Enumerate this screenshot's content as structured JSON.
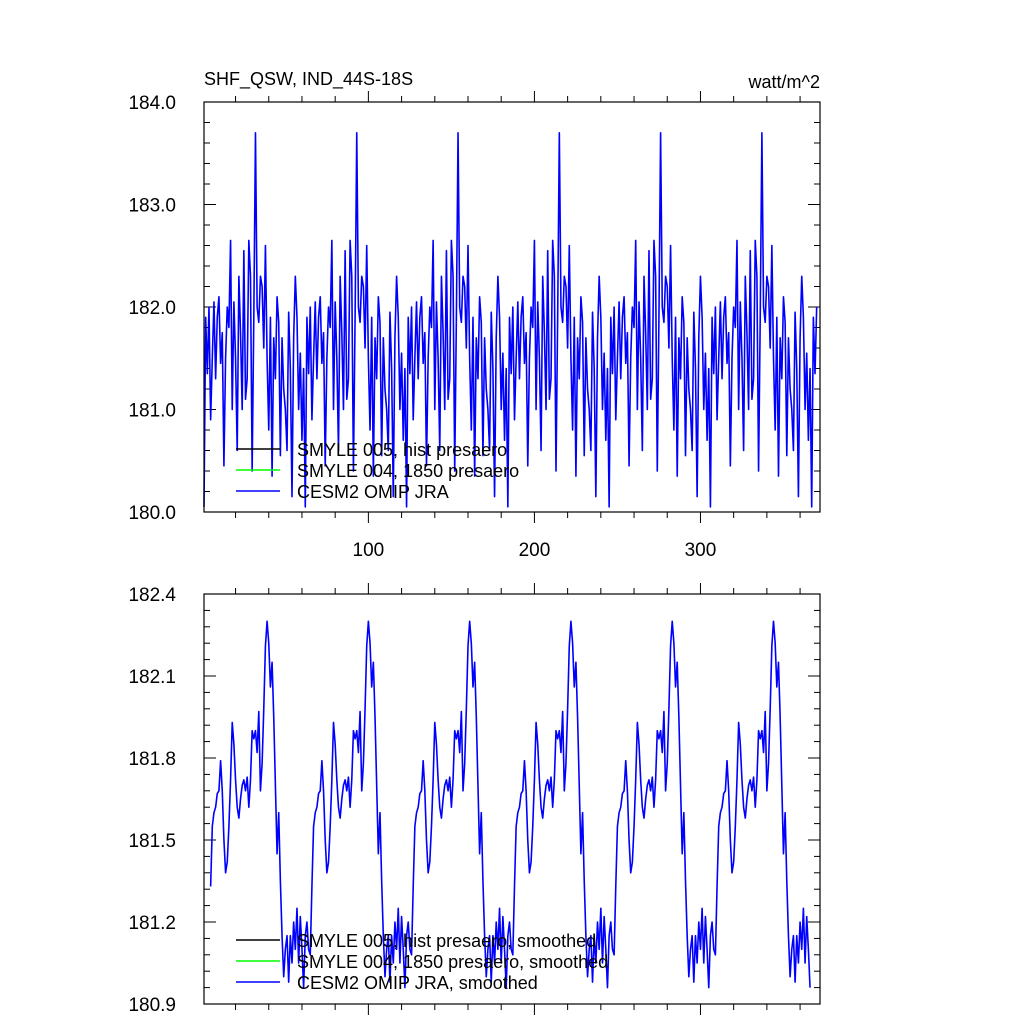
{
  "chart_data": [
    {
      "type": "line",
      "title": "SHF_QSW, IND_44S-18S",
      "units": "watt/m^2",
      "xlabel": "",
      "ylabel": "",
      "xlim": [
        1,
        372
      ],
      "ylim": [
        180.0,
        184.0
      ],
      "x_ticks": [
        100,
        200,
        300
      ],
      "y_ticks": [
        "180.0",
        "181.0",
        "182.0",
        "183.0",
        "184.0"
      ],
      "legend_position": "bottom-left",
      "legend": [
        {
          "name": "SMYLE 005, hist presaero",
          "color": "#000000"
        },
        {
          "name": "SMYLE 004, 1850 presaero",
          "color": "#00ff00"
        },
        {
          "name": "CESM2 OMIP JRA",
          "color": "#0000ff"
        }
      ],
      "period": 61,
      "start_x": 1,
      "end_x": 370,
      "cycle_values": [
        180.05,
        181.9,
        181.35,
        182.0,
        180.9,
        181.5,
        182.05,
        181.3,
        181.9,
        182.1,
        181.45,
        181.75,
        180.45,
        181.5,
        182.0,
        181.8,
        182.65,
        181.0,
        182.05,
        181.5,
        180.6,
        182.3,
        181.75,
        181.0,
        182.55,
        181.1,
        181.3,
        182.65,
        182.3,
        180.4,
        181.9,
        183.7,
        182.0,
        181.85,
        182.3,
        182.2,
        181.6,
        182.6,
        181.5,
        180.8,
        181.9,
        180.35,
        181.7,
        181.3,
        182.1,
        181.85,
        180.55,
        181.7,
        181.2,
        181.0,
        180.6,
        181.95,
        181.4,
        180.15,
        181.7,
        182.3,
        181.9,
        181.0,
        181.55,
        180.7,
        181.4
      ],
      "series": [
        {
          "name": "SMYLE 005, hist presaero",
          "color": "#000000",
          "visible": false
        },
        {
          "name": "SMYLE 004, 1850 presaero",
          "color": "#00ff00",
          "visible": false
        },
        {
          "name": "CESM2 OMIP JRA",
          "color": "#0000ff",
          "visible": true
        }
      ]
    },
    {
      "type": "line",
      "title": "",
      "xlabel": "",
      "ylabel": "",
      "xlim": [
        1,
        372
      ],
      "ylim": [
        180.9,
        182.4
      ],
      "x_ticks": [
        100,
        200,
        300
      ],
      "y_ticks": [
        "180.9",
        "181.2",
        "181.5",
        "181.8",
        "182.1",
        "182.4"
      ],
      "legend_position": "bottom-left",
      "legend": [
        {
          "name": "SMYLE 005, hist presaero, smoothed",
          "color": "#000000"
        },
        {
          "name": "SMYLE 004, 1850 presaero, smoothed",
          "color": "#00ff00"
        },
        {
          "name": "CESM2 OMIP JRA, smoothed",
          "color": "#0000ff"
        }
      ],
      "period": 61,
      "start_x": 5,
      "end_x": 366,
      "cycle_values": [
        181.33,
        181.55,
        181.6,
        181.62,
        181.67,
        181.68,
        181.79,
        181.68,
        181.5,
        181.38,
        181.42,
        181.55,
        181.72,
        181.93,
        181.85,
        181.72,
        181.62,
        181.58,
        181.65,
        181.7,
        181.72,
        181.68,
        181.73,
        181.62,
        181.72,
        181.9,
        181.87,
        181.9,
        181.82,
        181.97,
        181.68,
        181.78,
        181.98,
        182.21,
        182.3,
        182.22,
        182.06,
        182.15,
        181.95,
        181.7,
        181.45,
        181.6,
        181.35,
        181.15,
        181.0,
        181.1,
        181.15,
        180.98,
        181.15,
        181.05,
        181.2,
        181.1,
        181.25,
        181.05,
        181.22,
        181.1,
        180.96,
        181.15,
        181.2,
        181.1,
        181.08
      ],
      "series": [
        {
          "name": "SMYLE 005, hist presaero, smoothed",
          "color": "#000000",
          "visible": false
        },
        {
          "name": "SMYLE 004, 1850 presaero, smoothed",
          "color": "#00ff00",
          "visible": false
        },
        {
          "name": "CESM2 OMIP JRA, smoothed",
          "color": "#0000ff",
          "visible": true
        }
      ]
    }
  ]
}
